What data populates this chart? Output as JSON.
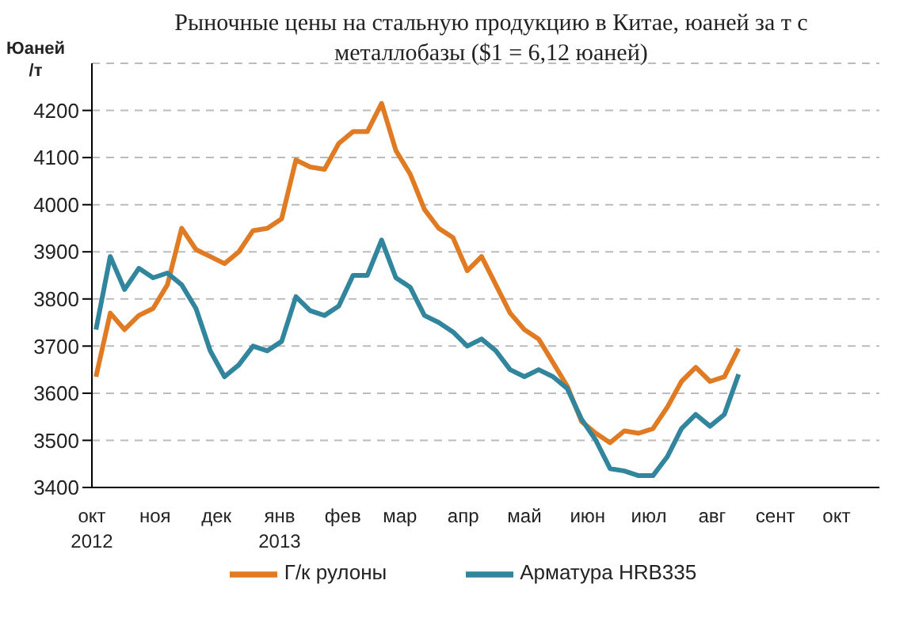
{
  "chart_data": {
    "type": "line",
    "title": "Рыночные цены на стальную продукцию в Китае, юаней за т с металлобазы ($1 = 6,12 юаней)",
    "ylabel": "Юаней\n/т",
    "x": [
      "2012-10-03",
      "2012-10-10",
      "2012-10-17",
      "2012-10-24",
      "2012-10-31",
      "2012-11-07",
      "2012-11-14",
      "2012-11-21",
      "2012-11-28",
      "2012-12-05",
      "2012-12-12",
      "2012-12-19",
      "2012-12-26",
      "2013-01-02",
      "2013-01-09",
      "2013-01-16",
      "2013-01-23",
      "2013-01-30",
      "2013-02-06",
      "2013-02-13",
      "2013-02-20",
      "2013-02-27",
      "2013-03-06",
      "2013-03-13",
      "2013-03-20",
      "2013-03-27",
      "2013-04-03",
      "2013-04-10",
      "2013-04-17",
      "2013-04-24",
      "2013-05-01",
      "2013-05-08",
      "2013-05-15",
      "2013-05-22",
      "2013-05-29",
      "2013-06-05",
      "2013-06-12",
      "2013-06-19",
      "2013-06-26",
      "2013-07-03",
      "2013-07-10",
      "2013-07-17",
      "2013-07-24",
      "2013-07-31",
      "2013-08-07",
      "2013-08-14"
    ],
    "series": [
      {
        "name": "Г/к рулоны",
        "color": "#e07b24",
        "values": [
          3635,
          3770,
          3735,
          3765,
          3780,
          3830,
          3950,
          3905,
          3890,
          3875,
          3900,
          3945,
          3950,
          3970,
          4095,
          4080,
          4075,
          4130,
          4155,
          4155,
          4215,
          4115,
          4065,
          3990,
          3950,
          3930,
          3860,
          3890,
          3830,
          3770,
          3735,
          3715,
          3665,
          3615,
          3540,
          3515,
          3495,
          3520,
          3515,
          3525,
          3570,
          3625,
          3655,
          3625,
          3635,
          3695
        ]
      },
      {
        "name": "Арматура HRB335",
        "color": "#31859c",
        "values": [
          3735,
          3890,
          3820,
          3865,
          3845,
          3855,
          3830,
          3780,
          3690,
          3635,
          3660,
          3700,
          3690,
          3710,
          3805,
          3775,
          3765,
          3785,
          3850,
          3850,
          3925,
          3845,
          3825,
          3765,
          3750,
          3730,
          3700,
          3715,
          3690,
          3650,
          3635,
          3650,
          3635,
          3610,
          3545,
          3500,
          3440,
          3435,
          3425,
          3425,
          3465,
          3525,
          3555,
          3530,
          3555,
          3640
        ]
      }
    ],
    "xlim": [
      "2012-10-01",
      "2013-10-22"
    ],
    "xticks": [
      {
        "value": "2012-10-01",
        "label": "окт\n2012"
      },
      {
        "value": "2012-11-01",
        "label": "ноя"
      },
      {
        "value": "2012-12-01",
        "label": "дек"
      },
      {
        "value": "2013-01-01",
        "label": "янв\n2013"
      },
      {
        "value": "2013-02-01",
        "label": "фев"
      },
      {
        "value": "2013-03-01",
        "label": "мар"
      },
      {
        "value": "2013-04-01",
        "label": "апр"
      },
      {
        "value": "2013-05-01",
        "label": "май"
      },
      {
        "value": "2013-06-01",
        "label": "июн"
      },
      {
        "value": "2013-07-01",
        "label": "июл"
      },
      {
        "value": "2013-08-01",
        "label": "авг"
      },
      {
        "value": "2013-09-01",
        "label": "сент"
      },
      {
        "value": "2013-10-01",
        "label": "окт"
      }
    ],
    "ylim": [
      3400,
      4300
    ],
    "yticks": [
      3400,
      3500,
      3600,
      3700,
      3800,
      3900,
      4000,
      4100,
      4200
    ],
    "grid": "y",
    "legend": "bottom",
    "marker": "none",
    "line_style": "solid"
  }
}
